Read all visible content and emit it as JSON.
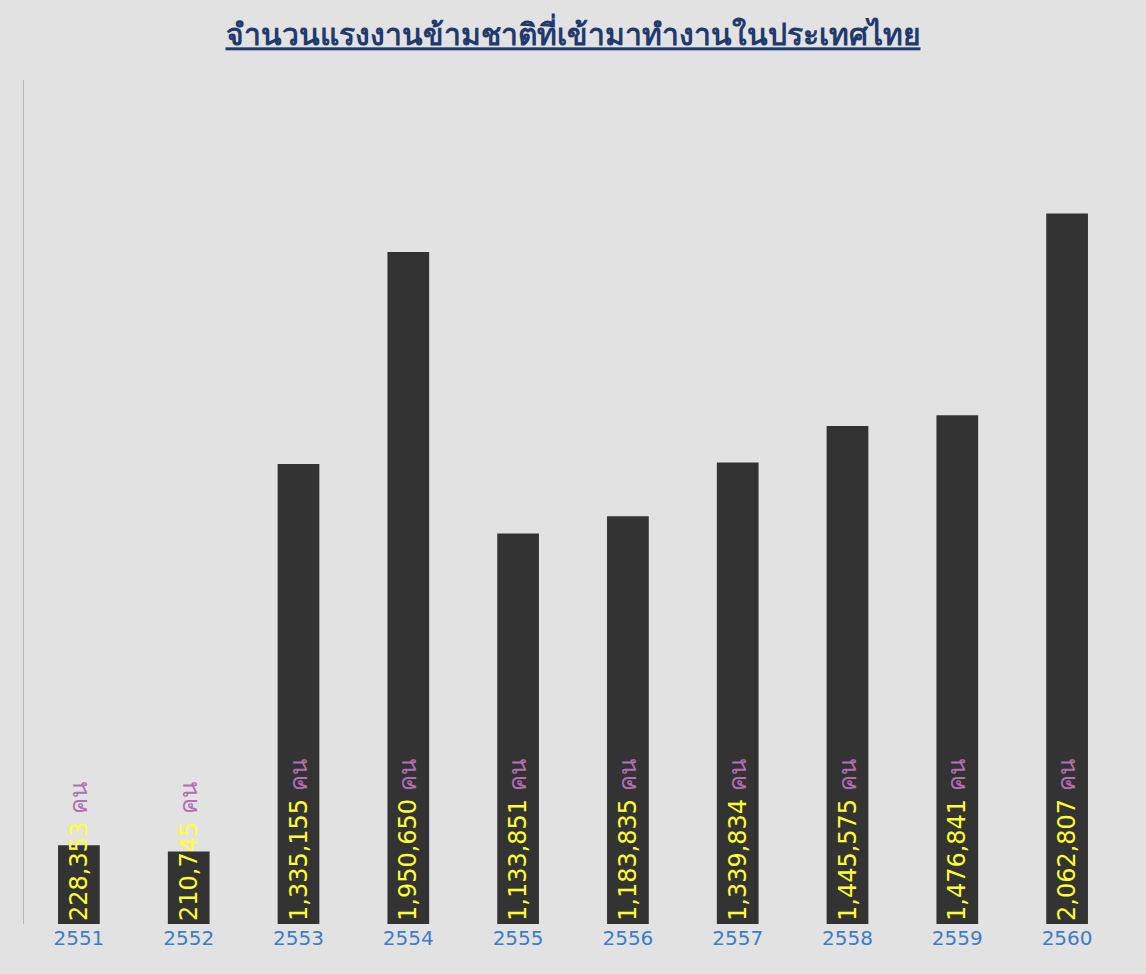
{
  "chart_data": {
    "type": "bar",
    "title": "จำนวนแรงงานข้ามชาติที่เข้ามาทำงานในประเทศไทย",
    "categories": [
      "2551",
      "2552",
      "2553",
      "2554",
      "2555",
      "2556",
      "2557",
      "2558",
      "2559",
      "2560"
    ],
    "values": [
      228353,
      210745,
      1335155,
      1950650,
      1133851,
      1183835,
      1339834,
      1445575,
      1476841,
      2062807
    ],
    "value_labels": [
      "228,353 คน",
      "210,745 คน",
      "1,335,155 คน",
      "1,950,650 คน",
      "1,133,851 คน",
      "1,183,835 คน",
      "1,339,834 คน",
      "1,445,575 คน",
      "1,476,841 คน",
      "2,062,807 คน"
    ],
    "color": "#333333",
    "ylim": [
      0,
      2450000
    ],
    "yticks": [],
    "data_labels": true,
    "tick_labels": "x",
    "grid": false
  }
}
